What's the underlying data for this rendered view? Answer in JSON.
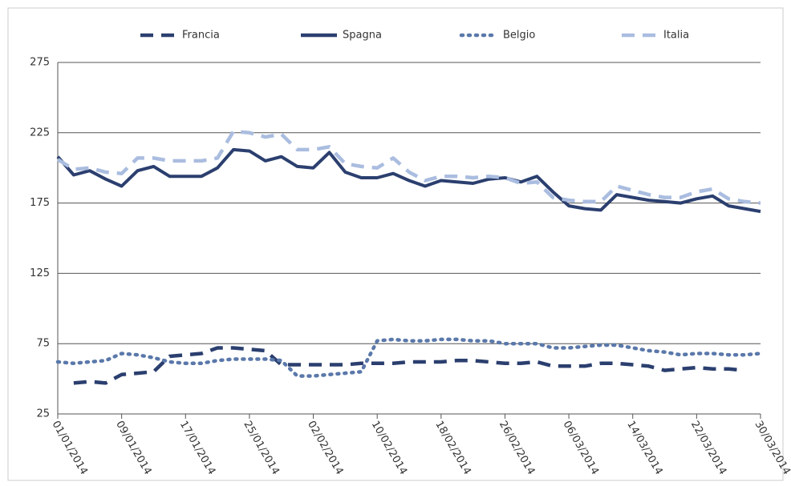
{
  "chart_data": {
    "type": "line",
    "categories": [
      "01/01/2014",
      null,
      null,
      null,
      "09/01/2014",
      null,
      null,
      null,
      "17/01/2014",
      null,
      null,
      null,
      "25/01/2014",
      null,
      null,
      null,
      "02/02/2014",
      null,
      null,
      null,
      "10/02/2014",
      null,
      null,
      null,
      "18/02/2014",
      null,
      null,
      null,
      "26/02/2014",
      null,
      null,
      null,
      "06/03/2014",
      null,
      null,
      null,
      "14/03/2014",
      null,
      null,
      null,
      "22/03/2014",
      null,
      null,
      null,
      "30/03/2014"
    ],
    "series": [
      {
        "name": "Francia",
        "color": "#2b3f6f",
        "style": "dashed",
        "values": [
          null,
          47,
          48,
          47,
          53,
          54,
          55,
          66,
          67,
          68,
          72,
          72,
          71,
          70,
          60,
          60,
          60,
          60,
          60,
          61,
          61,
          61,
          62,
          62,
          62,
          63,
          63,
          62,
          61,
          61,
          62,
          59,
          59,
          59,
          61,
          61,
          60,
          59,
          56,
          57,
          58,
          57,
          57,
          56,
          null
        ]
      },
      {
        "name": "Spagna",
        "color": "#2b3f6f",
        "style": "solid",
        "values": [
          208,
          195,
          198,
          192,
          187,
          198,
          201,
          194,
          194,
          194,
          200,
          213,
          212,
          205,
          208,
          201,
          200,
          211,
          197,
          193,
          193,
          196,
          191,
          187,
          191,
          190,
          189,
          192,
          193,
          190,
          194,
          183,
          173,
          171,
          170,
          181,
          179,
          177,
          176,
          175,
          178,
          180,
          173,
          171,
          169
        ]
      },
      {
        "name": "Belgio",
        "color": "#5a78aa",
        "style": "dotted",
        "values": [
          62,
          61,
          62,
          63,
          68,
          67,
          65,
          62,
          61,
          61,
          63,
          64,
          64,
          64,
          63,
          52,
          52,
          53,
          54,
          55,
          77,
          78,
          77,
          77,
          78,
          78,
          77,
          77,
          75,
          75,
          75,
          72,
          72,
          73,
          74,
          74,
          72,
          70,
          69,
          67,
          68,
          68,
          67,
          67,
          68
        ]
      },
      {
        "name": "Italia",
        "color": "#aabde0",
        "style": "dashed",
        "values": [
          206,
          199,
          200,
          197,
          196,
          207,
          207,
          205,
          205,
          205,
          207,
          226,
          225,
          222,
          224,
          213,
          213,
          215,
          203,
          201,
          200,
          207,
          197,
          191,
          194,
          194,
          193,
          194,
          193,
          189,
          190,
          179,
          177,
          176,
          176,
          187,
          184,
          181,
          179,
          179,
          183,
          185,
          178,
          176,
          175
        ]
      }
    ],
    "ylim": [
      25,
      275
    ],
    "yticks": [
      25,
      75,
      125,
      175,
      225,
      275
    ],
    "grid": true,
    "legend": "top"
  }
}
